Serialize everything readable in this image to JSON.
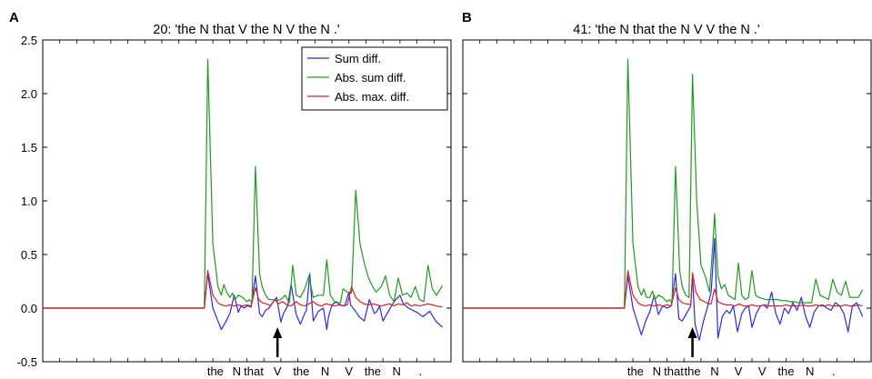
{
  "chart_data": [
    {
      "panel_label": "A",
      "title": "20: 'the N that V the N V the N .'",
      "type": "line",
      "ylim": [
        -0.5,
        2.5
      ],
      "xlim": [
        0,
        48
      ],
      "yticks": [
        -0.5,
        0.0,
        0.5,
        1.0,
        1.5,
        2.0,
        2.5
      ],
      "ytick_labels": [
        "-0.5",
        "0.0",
        "0.5",
        "1.0",
        "1.5",
        "2.0",
        "2.5"
      ],
      "x_tick_labels": [
        "the",
        "N",
        "that",
        "V",
        "the",
        "N",
        "V",
        "the",
        "N",
        "."
      ],
      "x_tick_positions": [
        20.3,
        22.8,
        24.8,
        27.6,
        30.4,
        33.2,
        36.0,
        38.8,
        41.6,
        44.4
      ],
      "arrow_at": 27.6,
      "legend": {
        "position": "top-right",
        "entries": [
          "Sum diff.",
          "Abs. sum diff.",
          "Abs. max. diff."
        ]
      },
      "series": [
        {
          "name": "Sum diff.",
          "color": "#2a2ae6",
          "x": [
            0,
            19.0,
            19.4,
            20.0,
            20.6,
            21.0,
            21.5,
            22.0,
            22.5,
            23.0,
            23.3,
            23.7,
            24.0,
            24.5,
            25.0,
            25.5,
            25.8,
            26.2,
            26.6,
            27.0,
            27.5,
            28.0,
            28.3,
            28.8,
            29.2,
            29.8,
            30.3,
            30.8,
            31.0,
            31.4,
            31.8,
            32.4,
            33.0,
            33.4,
            33.6,
            34.0,
            34.5,
            35.0,
            35.5,
            36.0,
            36.2,
            36.7,
            37.2,
            37.8,
            38.4,
            39.0,
            39.3,
            39.6,
            40.0,
            40.5,
            41.0,
            41.5,
            42.0,
            42.4,
            43.0,
            44.0,
            44.7,
            45.5,
            46.2,
            47.0
          ],
          "y": [
            0,
            0,
            0.32,
            0.0,
            -0.12,
            -0.2,
            -0.13,
            -0.05,
            0.12,
            -0.04,
            0.02,
            0.0,
            0.02,
            0.01,
            0.3,
            -0.05,
            -0.08,
            -0.02,
            0.0,
            0.05,
            0.1,
            -0.13,
            -0.05,
            0.02,
            0.22,
            -0.06,
            -0.15,
            -0.05,
            -0.02,
            0.32,
            -0.12,
            -0.03,
            0.0,
            -0.2,
            -0.08,
            0.03,
            0.06,
            0.03,
            0.02,
            0.15,
            0.03,
            -0.02,
            -0.08,
            -0.12,
            0.08,
            -0.05,
            -0.03,
            0.02,
            -0.12,
            -0.05,
            0.02,
            0.08,
            0.12,
            0.04,
            0.0,
            -0.04,
            -0.08,
            -0.03,
            -0.12,
            -0.18
          ]
        },
        {
          "name": "Abs. sum diff.",
          "color": "#229922",
          "x": [
            0,
            19.0,
            19.4,
            20.0,
            20.6,
            21.0,
            21.3,
            21.6,
            22.0,
            22.3,
            22.6,
            23.0,
            23.5,
            24.0,
            24.3,
            24.6,
            25.0,
            25.5,
            25.8,
            26.2,
            26.6,
            27.0,
            27.5,
            28.0,
            28.5,
            29.0,
            29.4,
            29.8,
            30.3,
            30.8,
            31.3,
            31.8,
            32.4,
            33.0,
            33.4,
            33.8,
            34.4,
            35.0,
            35.3,
            35.8,
            36.3,
            36.8,
            37.3,
            37.8,
            38.3,
            38.8,
            39.2,
            39.8,
            40.3,
            40.8,
            41.3,
            41.8,
            42.3,
            42.8,
            43.3,
            43.8,
            44.3,
            44.8,
            45.3,
            45.8,
            46.3,
            47.0
          ],
          "y": [
            0,
            0,
            2.32,
            0.6,
            0.2,
            0.12,
            0.22,
            0.15,
            0.1,
            0.14,
            0.08,
            0.12,
            0.1,
            0.06,
            0.08,
            0.05,
            1.32,
            0.32,
            0.2,
            0.12,
            0.08,
            0.08,
            0.07,
            0.08,
            0.12,
            0.05,
            0.4,
            0.12,
            0.1,
            0.18,
            0.3,
            0.1,
            0.12,
            0.12,
            0.45,
            0.12,
            0.05,
            0.05,
            0.18,
            0.15,
            0.14,
            1.1,
            0.6,
            0.42,
            0.28,
            0.2,
            0.15,
            0.2,
            0.3,
            0.12,
            0.06,
            0.28,
            0.12,
            0.14,
            0.1,
            0.2,
            0.08,
            0.06,
            0.4,
            0.18,
            0.12,
            0.21
          ]
        },
        {
          "name": "Abs. max. diff.",
          "color": "#e02020",
          "x": [
            0,
            19.0,
            19.4,
            20.0,
            20.6,
            21.0,
            21.5,
            22.0,
            22.5,
            23.0,
            23.5,
            24.0,
            24.5,
            25.0,
            25.4,
            25.8,
            26.3,
            26.8,
            27.3,
            27.7,
            28.2,
            28.7,
            29.2,
            29.8,
            30.3,
            30.8,
            31.3,
            31.8,
            32.3,
            32.8,
            33.3,
            33.8,
            34.3,
            34.8,
            35.3,
            35.8,
            36.3,
            36.8,
            37.3,
            37.8,
            38.3,
            38.8,
            39.3,
            39.8,
            40.3,
            40.8,
            41.3,
            41.8,
            42.3,
            42.8,
            43.3,
            43.8,
            44.3,
            44.8,
            45.3,
            45.8,
            46.3,
            47.0
          ],
          "y": [
            0,
            0,
            0.35,
            0.12,
            0.05,
            0.03,
            0.02,
            0.03,
            0.02,
            0.03,
            0.02,
            0.03,
            0.02,
            0.19,
            0.08,
            0.05,
            0.04,
            0.02,
            0.08,
            0.04,
            0.06,
            0.03,
            0.02,
            0.06,
            0.03,
            0.02,
            0.04,
            0.06,
            0.03,
            0.02,
            0.04,
            0.03,
            0.02,
            0.03,
            0.02,
            0.03,
            0.2,
            0.1,
            0.06,
            0.04,
            0.03,
            0.04,
            0.03,
            0.02,
            0.03,
            0.04,
            0.02,
            0.04,
            0.03,
            0.05,
            0.02,
            0.03,
            0.02,
            0.03,
            0.04,
            0.03,
            0.02,
            0.01
          ]
        }
      ]
    },
    {
      "panel_label": "B",
      "title": "41: 'the N that the N V V the N .'",
      "type": "line",
      "ylim": [
        -0.5,
        2.5
      ],
      "xlim": [
        0,
        48
      ],
      "x_tick_labels": [
        "the",
        "N",
        "that",
        "the",
        "N",
        "V",
        "V",
        "the",
        "N",
        "."
      ],
      "x_tick_positions": [
        20.3,
        22.8,
        24.8,
        27.0,
        29.6,
        32.4,
        35.2,
        38.0,
        40.8,
        43.6
      ],
      "arrow_at": 27.0,
      "series": [
        {
          "name": "Sum diff.",
          "color": "#2a2ae6",
          "x": [
            0,
            19.0,
            19.4,
            20.0,
            20.6,
            21.0,
            21.5,
            22.0,
            22.5,
            23.0,
            23.5,
            24.0,
            24.5,
            25.0,
            25.4,
            25.8,
            26.3,
            26.8,
            27.0,
            27.3,
            27.8,
            28.3,
            28.8,
            29.2,
            29.6,
            30.0,
            30.5,
            31.0,
            31.4,
            31.8,
            32.3,
            32.8,
            33.2,
            33.6,
            34.0,
            34.5,
            35.0,
            35.4,
            35.8,
            36.3,
            36.8,
            37.3,
            37.8,
            38.3,
            38.8,
            39.3,
            39.8,
            40.3,
            40.8,
            41.3,
            41.8,
            42.3,
            42.8,
            43.3,
            43.8,
            44.3,
            44.8,
            45.3,
            45.8,
            46.3,
            47.0
          ],
          "y": [
            0,
            0,
            0.3,
            0.0,
            -0.15,
            -0.25,
            -0.12,
            -0.03,
            0.12,
            -0.06,
            0.02,
            0.0,
            0.02,
            0.32,
            -0.1,
            -0.12,
            -0.05,
            0.02,
            0.3,
            -0.15,
            -0.3,
            -0.12,
            0.02,
            0.15,
            0.65,
            -0.28,
            -0.08,
            -0.02,
            -0.05,
            0.02,
            -0.22,
            -0.05,
            0.0,
            0.02,
            -0.18,
            -0.05,
            0.02,
            0.03,
            0.0,
            0.15,
            -0.05,
            -0.15,
            0.0,
            -0.05,
            0.05,
            -0.02,
            0.1,
            -0.08,
            -0.18,
            -0.04,
            0.02,
            0.03,
            0.0,
            -0.02,
            0.05,
            0.02,
            -0.05,
            -0.22,
            0.02,
            0.05,
            -0.08
          ]
        },
        {
          "name": "Abs. sum diff.",
          "color": "#229922",
          "x": [
            0,
            19.0,
            19.4,
            20.0,
            20.6,
            21.0,
            21.3,
            21.6,
            22.0,
            22.3,
            22.6,
            23.0,
            23.5,
            24.0,
            24.3,
            24.6,
            25.0,
            25.5,
            25.8,
            26.2,
            26.6,
            27.0,
            27.5,
            28.0,
            28.5,
            29.0,
            29.4,
            29.6,
            30.0,
            30.4,
            30.8,
            31.2,
            31.6,
            32.0,
            32.4,
            32.8,
            33.2,
            33.6,
            34.0,
            34.4,
            34.8,
            35.2,
            35.6,
            36.0,
            36.5,
            37.0,
            37.5,
            38.0,
            38.5,
            39.0,
            39.5,
            40.0,
            40.5,
            41.0,
            41.5,
            42.0,
            42.5,
            43.0,
            43.5,
            44.0,
            44.5,
            45.0,
            45.5,
            46.0,
            46.5,
            47.0
          ],
          "y": [
            0,
            0,
            2.32,
            0.6,
            0.2,
            0.12,
            0.18,
            0.1,
            0.1,
            0.16,
            0.08,
            0.12,
            0.1,
            0.06,
            0.08,
            0.05,
            1.32,
            0.35,
            0.2,
            0.12,
            0.1,
            2.18,
            1.0,
            0.4,
            0.3,
            0.15,
            0.6,
            0.88,
            0.3,
            0.18,
            0.22,
            0.12,
            0.1,
            0.08,
            0.42,
            0.12,
            0.08,
            0.1,
            0.35,
            0.12,
            0.1,
            0.09,
            0.08,
            0.08,
            0.08,
            0.08,
            0.07,
            0.07,
            0.06,
            0.06,
            0.05,
            0.05,
            0.05,
            0.05,
            0.27,
            0.12,
            0.1,
            0.08,
            0.27,
            0.15,
            0.12,
            0.25,
            0.1,
            0.1,
            0.1,
            0.17
          ]
        },
        {
          "name": "Abs. max. diff.",
          "color": "#e02020",
          "x": [
            0,
            19.0,
            19.4,
            20.0,
            20.6,
            21.0,
            21.5,
            22.0,
            22.5,
            23.0,
            23.5,
            24.0,
            24.5,
            25.0,
            25.4,
            25.8,
            26.3,
            26.8,
            27.0,
            27.4,
            27.9,
            28.4,
            28.9,
            29.2,
            29.6,
            30.0,
            30.5,
            31.0,
            31.5,
            32.0,
            32.5,
            33.0,
            33.5,
            34.0,
            34.5,
            35.0,
            35.5,
            36.0,
            36.5,
            37.0,
            37.5,
            38.0,
            38.5,
            39.0,
            39.5,
            40.0,
            40.5,
            41.0,
            41.5,
            42.0,
            42.5,
            43.0,
            43.5,
            44.0,
            44.5,
            45.0,
            45.5,
            46.0,
            46.5,
            47.0
          ],
          "y": [
            0,
            0,
            0.35,
            0.12,
            0.05,
            0.03,
            0.02,
            0.03,
            0.02,
            0.03,
            0.02,
            0.03,
            0.02,
            0.19,
            0.08,
            0.05,
            0.04,
            0.03,
            0.33,
            0.15,
            0.08,
            0.06,
            0.04,
            0.04,
            0.18,
            0.06,
            0.04,
            0.03,
            0.03,
            0.02,
            0.04,
            0.02,
            0.02,
            0.03,
            0.02,
            0.02,
            0.03,
            0.02,
            0.02,
            0.02,
            0.02,
            0.03,
            0.02,
            0.02,
            0.02,
            0.03,
            0.02,
            0.02,
            0.03,
            0.02,
            0.02,
            0.03,
            0.02,
            0.02,
            0.02,
            0.03,
            0.02,
            0.02,
            0.03,
            0.02
          ]
        }
      ]
    }
  ]
}
